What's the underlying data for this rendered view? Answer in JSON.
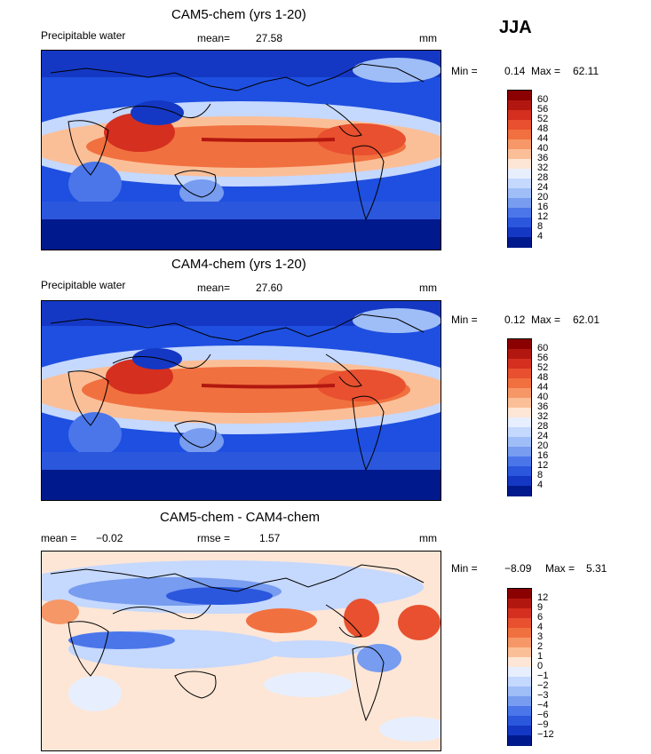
{
  "season": "JJA",
  "panels": [
    {
      "id": "cam5",
      "title": "CAM5-chem (yrs 1-20)",
      "left_label": "Precipitable water",
      "stat_label": "mean=",
      "stat_value": "27.58",
      "stat2_label": "",
      "stat2_value": "",
      "units": "mm",
      "min_label": "Min =",
      "min_value": "0.14",
      "max_label": "Max =",
      "max_value": "62.11",
      "colorbar": {
        "labels": [
          "60",
          "56",
          "52",
          "48",
          "44",
          "40",
          "36",
          "32",
          "28",
          "24",
          "20",
          "16",
          "12",
          "8",
          "4"
        ],
        "colors": [
          "#8b0000",
          "#b2170f",
          "#d42f1f",
          "#e8502f",
          "#f1703f",
          "#f69767",
          "#fbbf98",
          "#fde6d6",
          "#e7efff",
          "#c5d8fe",
          "#9fbdf7",
          "#779cf0",
          "#4a76ea",
          "#2b57dd",
          "#1438c4",
          "#00198c"
        ]
      }
    },
    {
      "id": "cam4",
      "title": "CAM4-chem (yrs 1-20)",
      "left_label": "Precipitable water",
      "stat_label": "mean=",
      "stat_value": "27.60",
      "stat2_label": "",
      "stat2_value": "",
      "units": "mm",
      "min_label": "Min =",
      "min_value": "0.12",
      "max_label": "Max =",
      "max_value": "62.01",
      "colorbar": {
        "labels": [
          "60",
          "56",
          "52",
          "48",
          "44",
          "40",
          "36",
          "32",
          "28",
          "24",
          "20",
          "16",
          "12",
          "8",
          "4"
        ],
        "colors": [
          "#8b0000",
          "#b2170f",
          "#d42f1f",
          "#e8502f",
          "#f1703f",
          "#f69767",
          "#fbbf98",
          "#fde6d6",
          "#e7efff",
          "#c5d8fe",
          "#9fbdf7",
          "#779cf0",
          "#4a76ea",
          "#2b57dd",
          "#1438c4",
          "#00198c"
        ]
      }
    },
    {
      "id": "diff",
      "title": "CAM5-chem - CAM4-chem",
      "left_label": "",
      "stat_label": "mean =",
      "stat_value": "−0.02",
      "stat2_label": "rmse =",
      "stat2_value": "1.57",
      "units": "mm",
      "min_label": "Min =",
      "min_value": "−8.09",
      "max_label": "Max =",
      "max_value": "5.31",
      "colorbar": {
        "labels": [
          "12",
          "9",
          "6",
          "4",
          "3",
          "2",
          "1",
          "0",
          "−1",
          "−2",
          "−3",
          "−4",
          "−6",
          "−9",
          "−12"
        ],
        "colors": [
          "#8b0000",
          "#b2170f",
          "#d42f1f",
          "#e8502f",
          "#f1703f",
          "#f69767",
          "#fbbf98",
          "#fde6d6",
          "#e7efff",
          "#c5d8fe",
          "#9fbdf7",
          "#779cf0",
          "#4a76ea",
          "#2b57dd",
          "#1438c4",
          "#00198c"
        ]
      }
    }
  ],
  "colors": {
    "bg_blue": "#1e4fe0",
    "bg_light": "#cfe0fb",
    "warm": "#e8502f",
    "coast": "#000000"
  }
}
